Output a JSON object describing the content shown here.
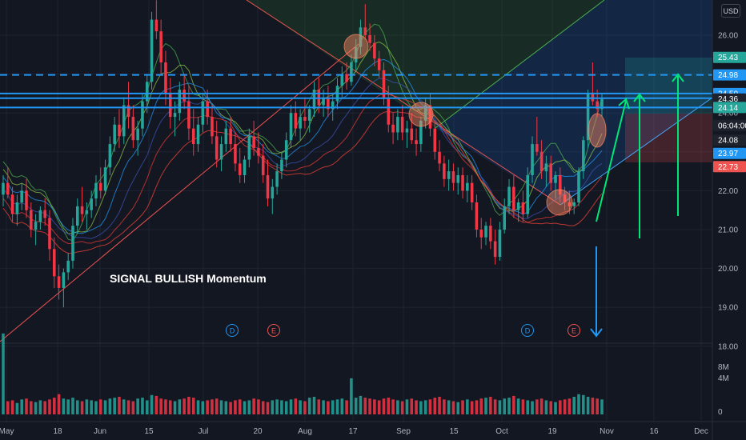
{
  "currency_label": "USD",
  "annotation": "SIGNAL BULLISH Momentum",
  "chart_data": {
    "type": "candlestick",
    "price_ylim": [
      18.2,
      27.0
    ],
    "price_ticks": [
      "26.00",
      "25.00",
      "24.00",
      "23.00",
      "22.00",
      "21.00",
      "20.00",
      "19.00",
      "18.00"
    ],
    "volume_ticks": [
      "8M",
      "4M",
      "0"
    ],
    "x_ticks": [
      "May",
      "18",
      "Jun",
      "15",
      "Jul",
      "20",
      "Aug",
      "17",
      "Sep",
      "15",
      "Oct",
      "19",
      "Nov",
      "16",
      "Dec"
    ],
    "price_tags": [
      {
        "label": "25.43",
        "value": 25.43,
        "color": "#26a69a"
      },
      {
        "label": "24.98",
        "value": 24.98,
        "color": "#2196f3"
      },
      {
        "label": "24.50",
        "value": 24.5,
        "color": "#2196f3"
      },
      {
        "label": "24.36",
        "value": 24.36,
        "color": "#1e222d"
      },
      {
        "label": "24.14",
        "value": 24.14,
        "color": "#26a69a"
      },
      {
        "label": "06:04:00",
        "value": 23.68,
        "color": "#1e222d"
      },
      {
        "label": "24.08",
        "value": 23.3,
        "color": "#1e222d"
      },
      {
        "label": "23.97",
        "value": 22.96,
        "color": "#2196f3"
      },
      {
        "label": "22.73",
        "value": 22.62,
        "color": "#ef5350"
      }
    ],
    "horizontal_levels": [
      {
        "value": 24.98,
        "style": "dashed"
      },
      {
        "value": 24.5,
        "style": "solid"
      },
      {
        "value": 24.38,
        "style": "solid"
      },
      {
        "value": 24.14,
        "style": "solid"
      }
    ],
    "event_markers": [
      {
        "label": "D",
        "color": "#2196f3"
      },
      {
        "label": "E",
        "color": "#ef5350"
      },
      {
        "label": "D",
        "color": "#2196f3"
      },
      {
        "label": "E",
        "color": "#ef5350"
      }
    ],
    "colors": {
      "up": "#26a69a",
      "down": "#f23645",
      "level": "#2196f3",
      "arrow_up": "#00e676",
      "arrow_down": "#2196f3"
    },
    "candles": [
      [
        21.9,
        22.4,
        21.6,
        22.2
      ],
      [
        22.2,
        22.6,
        21.8,
        21.9
      ],
      [
        21.9,
        22.1,
        21.2,
        21.4
      ],
      [
        21.4,
        21.9,
        21.1,
        21.7
      ],
      [
        21.7,
        22.2,
        21.5,
        22.0
      ],
      [
        22.0,
        22.3,
        21.3,
        21.5
      ],
      [
        21.5,
        21.7,
        20.8,
        21.0
      ],
      [
        21.0,
        21.4,
        20.6,
        21.2
      ],
      [
        21.2,
        21.6,
        21.0,
        21.5
      ],
      [
        21.5,
        21.8,
        21.1,
        21.3
      ],
      [
        21.3,
        21.5,
        20.2,
        20.5
      ],
      [
        20.5,
        20.8,
        19.5,
        19.8
      ],
      [
        19.8,
        20.1,
        19.2,
        19.5
      ],
      [
        19.5,
        20.0,
        19.0,
        19.9
      ],
      [
        19.9,
        20.4,
        19.7,
        20.2
      ],
      [
        20.2,
        21.3,
        20.0,
        21.1
      ],
      [
        21.1,
        21.8,
        20.9,
        21.6
      ],
      [
        21.6,
        22.1,
        21.2,
        21.4
      ],
      [
        21.4,
        21.7,
        21.0,
        21.5
      ],
      [
        21.5,
        22.0,
        21.3,
        21.8
      ],
      [
        21.8,
        22.4,
        21.6,
        22.2
      ],
      [
        22.2,
        22.6,
        21.8,
        22.0
      ],
      [
        22.0,
        22.8,
        21.9,
        22.6
      ],
      [
        22.6,
        23.4,
        22.4,
        23.2
      ],
      [
        23.2,
        23.9,
        23.0,
        23.7
      ],
      [
        23.7,
        24.1,
        23.1,
        23.4
      ],
      [
        23.4,
        24.4,
        23.2,
        24.2
      ],
      [
        24.2,
        24.8,
        23.6,
        23.9
      ],
      [
        23.9,
        24.2,
        23.1,
        23.3
      ],
      [
        23.3,
        23.8,
        22.9,
        23.6
      ],
      [
        23.6,
        24.5,
        23.4,
        24.3
      ],
      [
        24.3,
        25.0,
        24.0,
        24.8
      ],
      [
        24.8,
        26.6,
        24.6,
        26.4
      ],
      [
        26.4,
        26.9,
        25.9,
        26.1
      ],
      [
        26.1,
        26.4,
        25.0,
        25.3
      ],
      [
        25.3,
        25.6,
        24.2,
        24.5
      ],
      [
        24.5,
        24.9,
        23.6,
        23.9
      ],
      [
        23.9,
        24.3,
        23.4,
        24.0
      ],
      [
        24.0,
        24.8,
        23.8,
        24.6
      ],
      [
        24.6,
        25.0,
        24.1,
        24.3
      ],
      [
        24.3,
        24.7,
        23.3,
        23.6
      ],
      [
        23.6,
        24.1,
        22.9,
        23.2
      ],
      [
        23.2,
        23.9,
        23.0,
        23.7
      ],
      [
        23.7,
        24.5,
        23.5,
        24.3
      ],
      [
        24.3,
        24.6,
        23.7,
        23.9
      ],
      [
        23.9,
        24.2,
        23.2,
        23.4
      ],
      [
        23.4,
        23.8,
        22.6,
        22.8
      ],
      [
        22.8,
        23.4,
        22.5,
        23.2
      ],
      [
        23.2,
        23.8,
        23.0,
        23.6
      ],
      [
        23.6,
        23.9,
        23.0,
        23.2
      ],
      [
        23.2,
        23.5,
        22.5,
        22.7
      ],
      [
        22.7,
        23.1,
        22.2,
        22.4
      ],
      [
        22.4,
        22.9,
        22.2,
        22.8
      ],
      [
        22.8,
        23.6,
        22.6,
        23.4
      ],
      [
        23.4,
        23.8,
        22.9,
        23.1
      ],
      [
        23.1,
        23.5,
        22.7,
        22.9
      ],
      [
        22.9,
        23.2,
        22.2,
        22.4
      ],
      [
        22.4,
        22.8,
        21.6,
        21.8
      ],
      [
        21.8,
        22.3,
        21.4,
        22.1
      ],
      [
        22.1,
        22.7,
        21.9,
        22.5
      ],
      [
        22.5,
        23.0,
        22.3,
        22.8
      ],
      [
        22.8,
        23.5,
        22.6,
        23.3
      ],
      [
        23.3,
        24.2,
        23.1,
        24.0
      ],
      [
        24.0,
        24.3,
        23.4,
        23.6
      ],
      [
        23.6,
        24.1,
        23.3,
        23.9
      ],
      [
        23.9,
        24.4,
        23.6,
        23.8
      ],
      [
        23.8,
        24.2,
        23.5,
        24.1
      ],
      [
        24.1,
        24.8,
        23.9,
        24.6
      ],
      [
        24.6,
        24.9,
        24.0,
        24.2
      ],
      [
        24.2,
        24.6,
        23.9,
        24.4
      ],
      [
        24.4,
        24.7,
        23.9,
        24.1
      ],
      [
        24.1,
        24.5,
        23.8,
        24.3
      ],
      [
        24.3,
        24.9,
        24.1,
        24.7
      ],
      [
        24.7,
        25.2,
        24.4,
        25.0
      ],
      [
        25.0,
        25.3,
        24.6,
        24.8
      ],
      [
        24.8,
        25.5,
        24.7,
        25.3
      ],
      [
        25.3,
        25.9,
        25.1,
        25.7
      ],
      [
        25.7,
        26.4,
        25.5,
        26.2
      ],
      [
        26.2,
        26.8,
        25.9,
        26.0
      ],
      [
        26.0,
        26.3,
        25.6,
        25.8
      ],
      [
        25.8,
        26.0,
        25.2,
        25.4
      ],
      [
        25.4,
        25.6,
        24.9,
        25.1
      ],
      [
        25.1,
        25.3,
        24.2,
        24.4
      ],
      [
        24.4,
        24.7,
        23.5,
        23.7
      ],
      [
        23.7,
        24.0,
        23.2,
        23.5
      ],
      [
        23.5,
        24.1,
        23.3,
        23.9
      ],
      [
        23.9,
        24.2,
        23.3,
        23.5
      ],
      [
        23.5,
        23.8,
        23.1,
        23.6
      ],
      [
        23.6,
        24.0,
        23.2,
        23.3
      ],
      [
        23.3,
        23.6,
        22.9,
        23.2
      ],
      [
        23.2,
        23.9,
        23.0,
        23.8
      ],
      [
        23.8,
        24.4,
        23.6,
        24.2
      ],
      [
        24.2,
        24.5,
        23.4,
        23.6
      ],
      [
        23.6,
        23.8,
        22.8,
        23.0
      ],
      [
        23.0,
        23.3,
        22.5,
        22.7
      ],
      [
        22.7,
        22.9,
        22.1,
        22.3
      ],
      [
        22.3,
        22.8,
        22.0,
        22.5
      ],
      [
        22.5,
        22.7,
        22.0,
        22.2
      ],
      [
        22.2,
        22.6,
        21.9,
        22.4
      ],
      [
        22.4,
        22.6,
        21.8,
        22.0
      ],
      [
        22.0,
        22.4,
        21.7,
        22.2
      ],
      [
        22.2,
        22.4,
        21.5,
        21.7
      ],
      [
        21.7,
        21.9,
        20.8,
        21.0
      ],
      [
        21.0,
        21.3,
        20.5,
        20.8
      ],
      [
        20.8,
        21.2,
        20.6,
        21.1
      ],
      [
        21.1,
        21.3,
        20.5,
        20.7
      ],
      [
        20.7,
        21.0,
        20.1,
        20.3
      ],
      [
        20.3,
        21.2,
        20.2,
        21.0
      ],
      [
        21.0,
        21.8,
        20.9,
        21.6
      ],
      [
        21.6,
        22.3,
        21.4,
        22.1
      ],
      [
        22.1,
        22.4,
        21.3,
        21.5
      ],
      [
        21.5,
        21.8,
        21.2,
        21.7
      ],
      [
        21.7,
        22.0,
        21.2,
        21.4
      ],
      [
        21.4,
        22.6,
        21.3,
        22.4
      ],
      [
        22.4,
        23.4,
        22.2,
        23.2
      ],
      [
        23.2,
        23.9,
        22.9,
        23.0
      ],
      [
        23.0,
        23.3,
        22.3,
        22.5
      ],
      [
        22.5,
        22.9,
        22.1,
        22.7
      ],
      [
        22.7,
        22.9,
        22.0,
        22.2
      ],
      [
        22.2,
        22.5,
        21.8,
        22.4
      ],
      [
        22.4,
        22.6,
        21.7,
        21.9
      ],
      [
        21.9,
        22.1,
        21.5,
        21.7
      ],
      [
        21.7,
        22.0,
        21.4,
        21.6
      ],
      [
        21.6,
        21.8,
        21.4,
        21.7
      ],
      [
        21.7,
        22.6,
        21.6,
        22.5
      ],
      [
        22.5,
        23.4,
        22.3,
        23.3
      ],
      [
        23.3,
        24.6,
        23.1,
        24.5
      ],
      [
        24.5,
        25.3,
        24.2,
        24.3
      ],
      [
        24.3,
        24.6,
        23.9,
        24.1
      ],
      [
        24.1,
        24.5,
        23.9,
        24.36
      ]
    ],
    "volume": [
      9.2,
      1.5,
      1.6,
      1.3,
      1.7,
      1.8,
      1.5,
      1.4,
      1.6,
      1.5,
      1.7,
      1.9,
      2.3,
      1.8,
      1.7,
      1.9,
      1.6,
      1.5,
      1.7,
      1.6,
      1.5,
      1.7,
      1.6,
      1.8,
      1.9,
      2.0,
      1.7,
      1.6,
      1.5,
      1.8,
      1.9,
      1.6,
      2.2,
      2.1,
      1.8,
      1.7,
      1.6,
      1.5,
      1.7,
      1.8,
      2.0,
      1.9,
      1.6,
      1.5,
      1.6,
      1.7,
      1.8,
      1.6,
      1.5,
      1.4,
      1.6,
      1.7,
      1.5,
      1.6,
      1.8,
      1.7,
      1.5,
      1.4,
      1.6,
      1.7,
      1.6,
      1.5,
      1.7,
      1.8,
      1.6,
      1.5,
      1.9,
      2.0,
      1.7,
      1.6,
      1.5,
      1.6,
      1.7,
      1.8,
      1.6,
      4.1,
      1.9,
      2.1,
      1.9,
      1.8,
      1.7,
      1.6,
      1.8,
      1.9,
      1.7,
      1.6,
      1.5,
      1.7,
      1.8,
      1.6,
      1.5,
      1.6,
      1.7,
      1.9,
      2.0,
      1.7,
      1.6,
      1.5,
      1.4,
      1.6,
      1.7,
      1.5,
      1.6,
      1.8,
      1.9,
      2.0,
      1.7,
      1.6,
      1.8,
      1.9,
      2.1,
      1.8,
      1.7,
      1.6,
      1.5,
      1.7,
      1.8,
      1.6,
      1.5,
      1.4,
      1.6,
      1.7,
      1.8,
      2.0,
      2.3,
      2.2,
      2.0,
      1.9,
      1.8,
      1.7
    ]
  }
}
